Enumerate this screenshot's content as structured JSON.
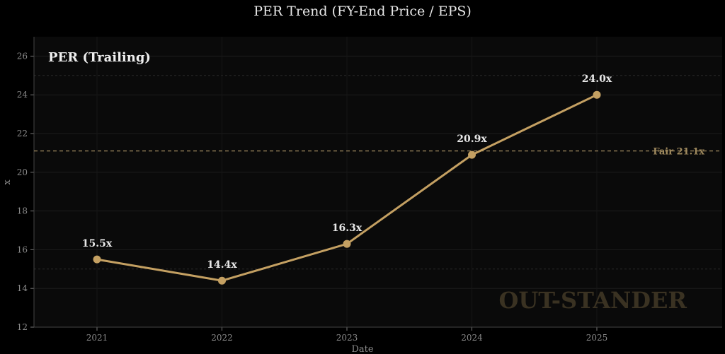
{
  "chart_data": {
    "type": "line",
    "title": "PER Trend (FY-End Price / EPS)",
    "inset_label": "PER (Trailing)",
    "xlabel": "Date",
    "ylabel": "x",
    "categories": [
      "2021",
      "2022",
      "2023",
      "2024",
      "2025"
    ],
    "series": [
      {
        "name": "PER (Trailing)",
        "values": [
          15.5,
          14.4,
          16.3,
          20.9,
          24.0
        ],
        "labels": [
          "15.5x",
          "14.4x",
          "16.3x",
          "20.9x",
          "24.0x"
        ]
      }
    ],
    "ylim": [
      12,
      27
    ],
    "yticks": [
      12,
      14,
      16,
      18,
      20,
      22,
      24,
      26
    ],
    "reference_line": {
      "value": 21.1,
      "label": "Fair 21.1x"
    },
    "watermark": "OUT-STANDER",
    "colors": {
      "line": "#c4a062",
      "ref": "#a08a5e",
      "background": "#0a0a0a",
      "text": "#e8e8e8",
      "watermark": "#3a3222"
    }
  }
}
